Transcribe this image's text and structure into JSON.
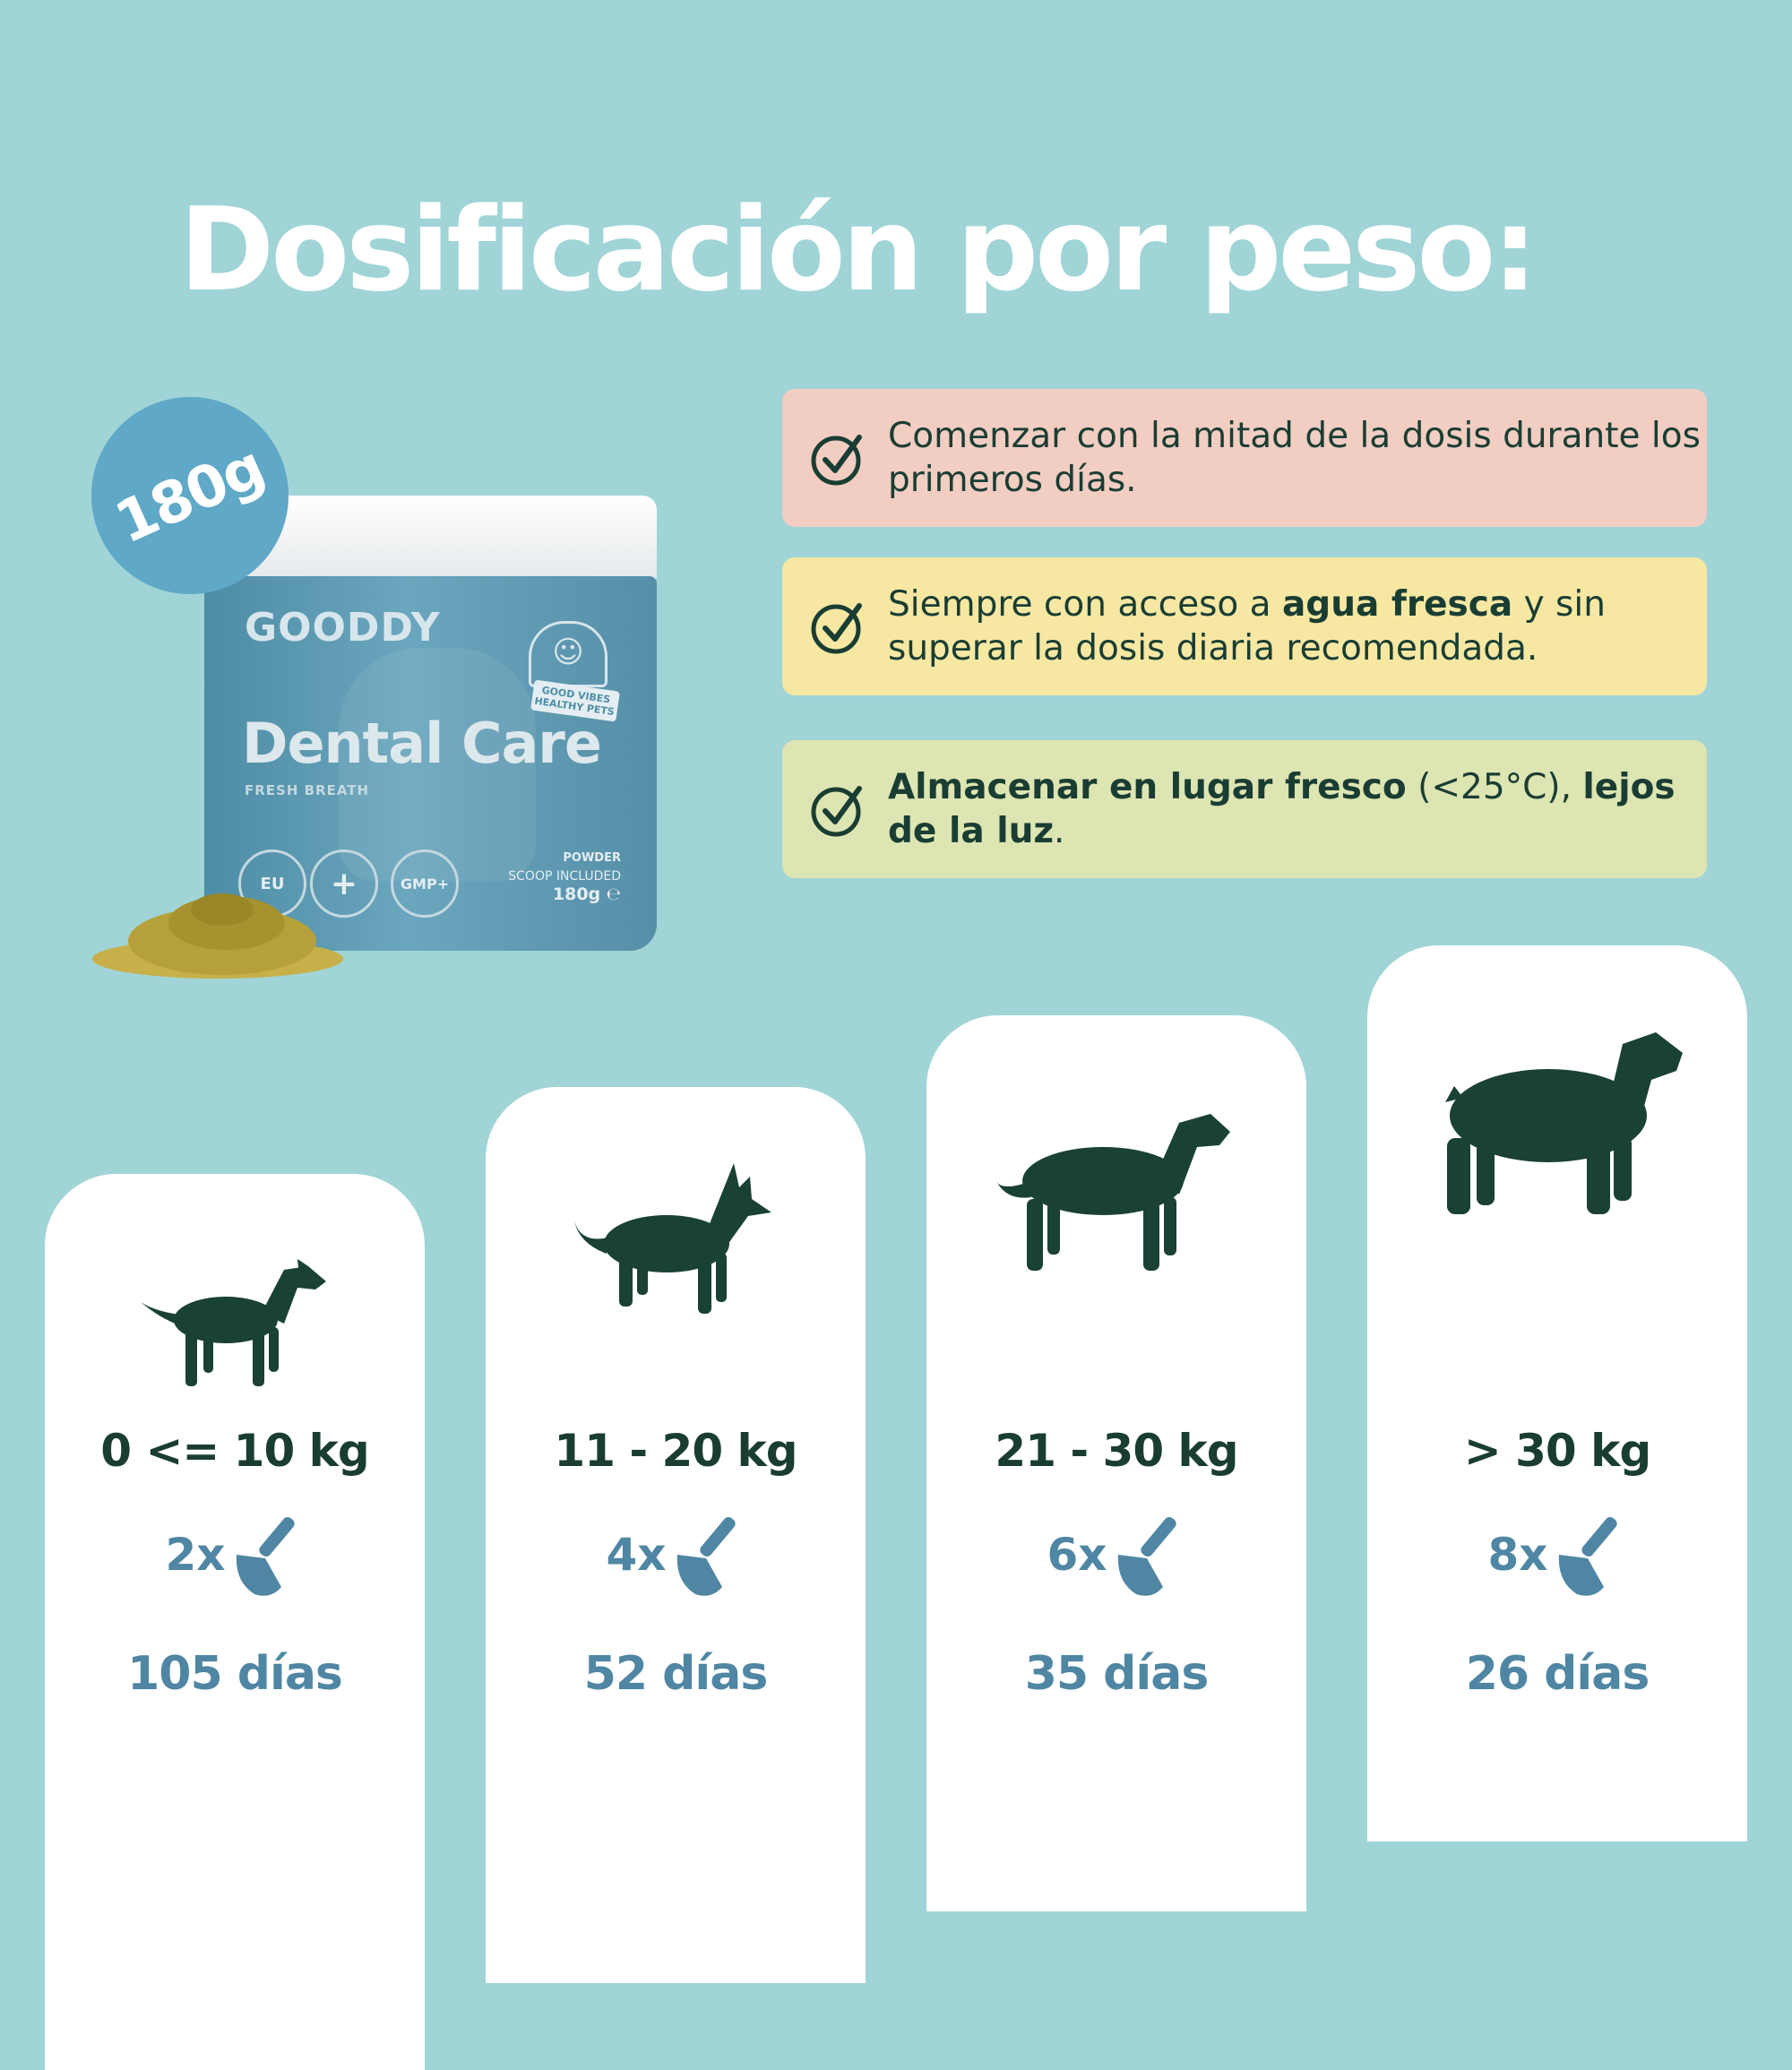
{
  "title": "Dosificación por peso:",
  "badge": "180g",
  "product": {
    "brand": "GOODDY",
    "name": "Dental Care",
    "subtitle": "FRESH BREATH",
    "sticker_text": "GOOD VIBES HEALTHY PETS",
    "seals": [
      "EU",
      "+",
      "GMP+"
    ],
    "format": "POWDER",
    "scoop": "SCOOP INCLUDED",
    "weight": "180g ℮"
  },
  "notes": [
    {
      "parts": [
        {
          "text": "Comenzar con la mitad de la dosis durante los primeros días.",
          "bold": false
        }
      ],
      "color": "#f2cdc2"
    },
    {
      "parts": [
        {
          "text": "Siempre con acceso a ",
          "bold": false
        },
        {
          "text": "agua fresca",
          "bold": true
        },
        {
          "text": " y sin superar la dosis diaria recomendada.",
          "bold": false
        }
      ],
      "color": "#f6e8a3"
    },
    {
      "parts": [
        {
          "text": "Almacenar en lugar fresco",
          "bold": true
        },
        {
          "text": " (<25°C), ",
          "bold": false
        },
        {
          "text": "lejos de la luz",
          "bold": true
        },
        {
          "text": ".",
          "bold": false
        }
      ],
      "color": "#dde5b2"
    }
  ],
  "dosage": [
    {
      "weight": "0 <= 10 kg",
      "dose": "2x",
      "days": "105 días",
      "dog_icon": "small-dog-icon"
    },
    {
      "weight": "11 - 20 kg",
      "dose": "4x",
      "days": "52 días",
      "dog_icon": "medium-dog-icon"
    },
    {
      "weight": "21 - 30 kg",
      "dose": "6x",
      "days": "35 días",
      "dog_icon": "large-dog-icon"
    },
    {
      "weight": "> 30 kg",
      "dose": "8x",
      "days": "26 días",
      "dog_icon": "xl-dog-icon"
    }
  ],
  "colors": {
    "background": "#a0d4d6",
    "dark_green": "#1a3d33",
    "blue": "#4f86a3"
  }
}
